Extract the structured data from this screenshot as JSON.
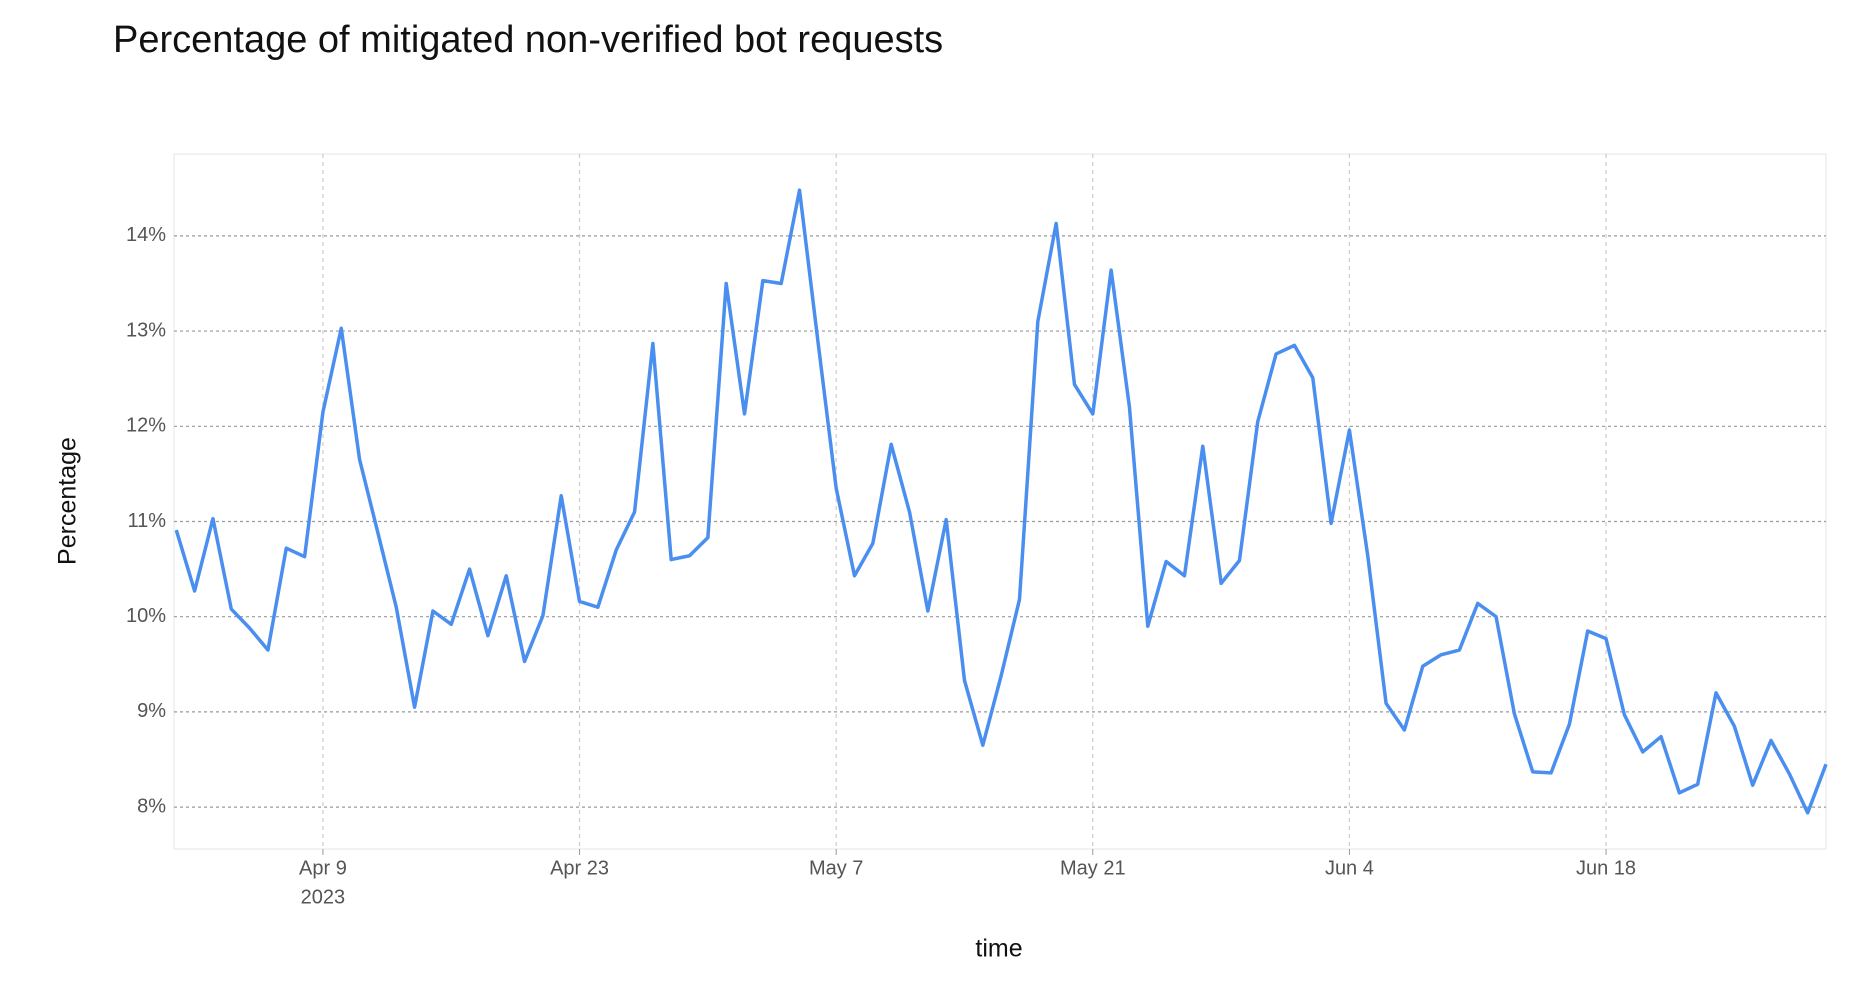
{
  "chart_data": {
    "type": "line",
    "title": "Percentage of mitigated non-verified bot requests",
    "x_label": "time",
    "y_label": "Percentage",
    "x": [
      "2023-04-01",
      "2023-04-02",
      "2023-04-03",
      "2023-04-04",
      "2023-04-05",
      "2023-04-06",
      "2023-04-07",
      "2023-04-08",
      "2023-04-09",
      "2023-04-10",
      "2023-04-11",
      "2023-04-12",
      "2023-04-13",
      "2023-04-14",
      "2023-04-15",
      "2023-04-16",
      "2023-04-17",
      "2023-04-18",
      "2023-04-19",
      "2023-04-20",
      "2023-04-21",
      "2023-04-22",
      "2023-04-23",
      "2023-04-24",
      "2023-04-25",
      "2023-04-26",
      "2023-04-27",
      "2023-04-28",
      "2023-04-29",
      "2023-04-30",
      "2023-05-01",
      "2023-05-02",
      "2023-05-03",
      "2023-05-04",
      "2023-05-05",
      "2023-05-06",
      "2023-05-07",
      "2023-05-08",
      "2023-05-09",
      "2023-05-10",
      "2023-05-11",
      "2023-05-12",
      "2023-05-13",
      "2023-05-14",
      "2023-05-15",
      "2023-05-16",
      "2023-05-17",
      "2023-05-18",
      "2023-05-19",
      "2023-05-20",
      "2023-05-21",
      "2023-05-22",
      "2023-05-23",
      "2023-05-24",
      "2023-05-25",
      "2023-05-26",
      "2023-05-27",
      "2023-05-28",
      "2023-05-29",
      "2023-05-30",
      "2023-05-31",
      "2023-06-01",
      "2023-06-02",
      "2023-06-03",
      "2023-06-04",
      "2023-06-05",
      "2023-06-06",
      "2023-06-07",
      "2023-06-08",
      "2023-06-09",
      "2023-06-10",
      "2023-06-11",
      "2023-06-12",
      "2023-06-13",
      "2023-06-14",
      "2023-06-15",
      "2023-06-16",
      "2023-06-17",
      "2023-06-18",
      "2023-06-19",
      "2023-06-20",
      "2023-06-21",
      "2023-06-22",
      "2023-06-23",
      "2023-06-24",
      "2023-06-25",
      "2023-06-26",
      "2023-06-27",
      "2023-06-28",
      "2023-06-29",
      "2023-06-30"
    ],
    "series": [
      {
        "name": "Percentage",
        "color": "#4a8ff0",
        "values": [
          10.91,
          10.27,
          11.03,
          10.08,
          9.88,
          9.65,
          10.72,
          10.63,
          12.15,
          13.03,
          11.65,
          10.88,
          10.1,
          9.05,
          10.06,
          9.92,
          10.5,
          9.8,
          10.43,
          9.53,
          10.01,
          11.27,
          10.16,
          10.1,
          10.7,
          11.1,
          12.87,
          10.6,
          10.64,
          10.83,
          13.5,
          12.13,
          13.53,
          13.5,
          14.48,
          12.9,
          11.35,
          10.43,
          10.77,
          11.81,
          11.1,
          10.06,
          11.02,
          9.33,
          8.65,
          9.38,
          10.18,
          13.1,
          14.13,
          12.44,
          12.13,
          13.64,
          12.2,
          9.9,
          10.58,
          10.43,
          11.79,
          10.35,
          10.59,
          12.05,
          12.76,
          12.85,
          12.51,
          10.98,
          11.96,
          10.64,
          9.09,
          8.81,
          9.48,
          9.6,
          9.65,
          10.14,
          10.0,
          8.98,
          8.37,
          8.36,
          8.87,
          9.85,
          9.77,
          8.97,
          8.58,
          8.74,
          8.15,
          8.24,
          9.2,
          8.85,
          8.23,
          8.7,
          8.35,
          7.94,
          8.45
        ]
      }
    ],
    "xlim": [
      "2023-03-31T21:00:00Z",
      "2023-06-30"
    ],
    "xticks": [
      {
        "value": "2023-04-09",
        "label": "Apr 9",
        "sublabel": "2023"
      },
      {
        "value": "2023-04-23",
        "label": "Apr 23"
      },
      {
        "value": "2023-05-07",
        "label": "May 7"
      },
      {
        "value": "2023-05-21",
        "label": "May 21"
      },
      {
        "value": "2023-06-04",
        "label": "Jun 4"
      },
      {
        "value": "2023-06-18",
        "label": "Jun 18"
      }
    ],
    "ylim": [
      7.56,
      14.86
    ],
    "yticks": [
      {
        "value": 8,
        "label": "8%"
      },
      {
        "value": 9,
        "label": "9%"
      },
      {
        "value": 10,
        "label": "10%"
      },
      {
        "value": 11,
        "label": "11%"
      },
      {
        "value": 12,
        "label": "12%"
      },
      {
        "value": 13,
        "label": "13%"
      },
      {
        "value": 14,
        "label": "14%"
      }
    ],
    "grid": true
  }
}
